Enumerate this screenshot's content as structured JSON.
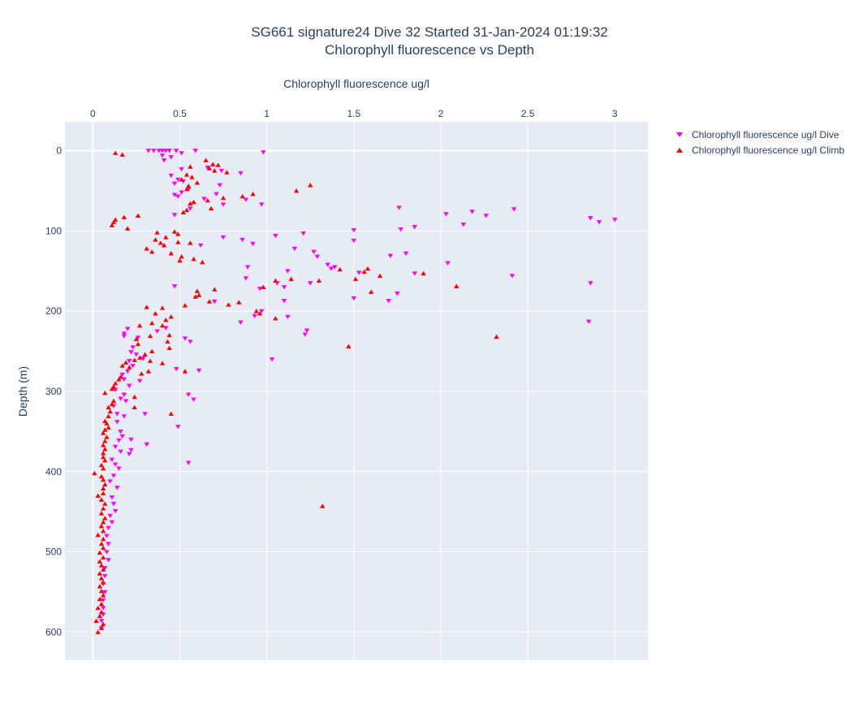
{
  "chart_data": {
    "type": "scatter",
    "title": "SG661 signature24 Dive 32 Started 31-Jan-2024 01:19:32",
    "subtitle": "Chlorophyll fluorescence vs Depth",
    "xlabel": "Chlorophyll fluorescence ug/l",
    "ylabel": "Depth (m)",
    "xlim": [
      -0.16,
      3.19
    ],
    "ylim": [
      635,
      -36
    ],
    "x_axis_position": "top",
    "y_reversed": true,
    "x_ticks": [
      0,
      0.5,
      1,
      1.5,
      2,
      2.5,
      3
    ],
    "y_ticks": [
      0,
      100,
      200,
      300,
      400,
      500,
      600
    ],
    "grid": true,
    "legend_position": "right",
    "series": [
      {
        "name": "Chlorophyll fluorescence ug/l Dive",
        "color": "#ff00ff",
        "marker": "triangle-down",
        "points": [
          [
            0.32,
            0
          ],
          [
            0.35,
            0
          ],
          [
            0.38,
            0
          ],
          [
            0.4,
            0
          ],
          [
            0.42,
            0
          ],
          [
            0.44,
            0
          ],
          [
            0.48,
            0
          ],
          [
            0.59,
            0
          ],
          [
            0.98,
            2
          ],
          [
            0.51,
            3
          ],
          [
            0.4,
            6
          ],
          [
            0.45,
            8
          ],
          [
            0.41,
            12
          ],
          [
            0.66,
            21
          ],
          [
            0.74,
            25
          ],
          [
            0.85,
            28
          ],
          [
            0.51,
            23
          ],
          [
            0.45,
            31
          ],
          [
            0.49,
            36
          ],
          [
            0.52,
            38
          ],
          [
            0.47,
            41
          ],
          [
            0.73,
            43
          ],
          [
            0.55,
            48
          ],
          [
            0.51,
            52
          ],
          [
            0.47,
            55
          ],
          [
            0.49,
            57
          ],
          [
            0.71,
            54
          ],
          [
            0.64,
            60
          ],
          [
            0.75,
            67
          ],
          [
            0.88,
            61
          ],
          [
            0.97,
            67
          ],
          [
            0.56,
            72
          ],
          [
            0.47,
            80
          ],
          [
            1.76,
            71
          ],
          [
            2.03,
            79
          ],
          [
            2.18,
            76
          ],
          [
            2.26,
            81
          ],
          [
            2.42,
            73
          ],
          [
            2.86,
            84
          ],
          [
            2.91,
            89
          ],
          [
            3.0,
            86
          ],
          [
            2.13,
            92
          ],
          [
            1.85,
            95
          ],
          [
            1.77,
            98
          ],
          [
            1.5,
            99
          ],
          [
            1.21,
            103
          ],
          [
            1.05,
            106
          ],
          [
            0.75,
            108
          ],
          [
            0.86,
            111
          ],
          [
            0.92,
            116
          ],
          [
            1.5,
            112
          ],
          [
            0.62,
            118
          ],
          [
            1.16,
            122
          ],
          [
            1.27,
            126
          ],
          [
            1.29,
            132
          ],
          [
            1.8,
            128
          ],
          [
            1.71,
            131
          ],
          [
            1.35,
            142
          ],
          [
            1.37,
            147
          ],
          [
            1.39,
            145
          ],
          [
            1.12,
            150
          ],
          [
            1.53,
            152
          ],
          [
            1.85,
            153
          ],
          [
            2.04,
            140
          ],
          [
            2.41,
            156
          ],
          [
            0.89,
            145
          ],
          [
            0.88,
            159
          ],
          [
            1.06,
            165
          ],
          [
            1.25,
            165
          ],
          [
            1.1,
            170
          ],
          [
            0.96,
            172
          ],
          [
            1.5,
            184
          ],
          [
            1.75,
            178
          ],
          [
            1.7,
            187
          ],
          [
            2.86,
            165
          ],
          [
            0.47,
            169
          ],
          [
            0.7,
            188
          ],
          [
            1.1,
            187
          ],
          [
            0.97,
            200
          ],
          [
            0.93,
            206
          ],
          [
            1.12,
            207
          ],
          [
            0.85,
            214
          ],
          [
            1.23,
            224
          ],
          [
            1.22,
            229
          ],
          [
            2.85,
            213
          ],
          [
            0.2,
            222
          ],
          [
            0.18,
            228
          ],
          [
            0.26,
            233
          ],
          [
            0.37,
            225
          ],
          [
            0.42,
            221
          ],
          [
            0.18,
            231
          ],
          [
            0.53,
            234
          ],
          [
            0.56,
            238
          ],
          [
            1.03,
            260
          ],
          [
            0.23,
            245
          ],
          [
            0.22,
            251
          ],
          [
            0.25,
            254
          ],
          [
            0.29,
            259
          ],
          [
            0.21,
            262
          ],
          [
            0.23,
            268
          ],
          [
            0.48,
            272
          ],
          [
            0.61,
            274
          ],
          [
            0.2,
            275
          ],
          [
            0.17,
            279
          ],
          [
            0.18,
            285
          ],
          [
            0.27,
            287
          ],
          [
            0.21,
            293
          ],
          [
            0.13,
            298
          ],
          [
            0.18,
            304
          ],
          [
            0.19,
            312
          ],
          [
            0.55,
            304
          ],
          [
            0.58,
            310
          ],
          [
            0.16,
            309
          ],
          [
            0.12,
            318
          ],
          [
            0.14,
            328
          ],
          [
            0.3,
            328
          ],
          [
            0.18,
            331
          ],
          [
            0.14,
            338
          ],
          [
            0.49,
            344
          ],
          [
            0.16,
            350
          ],
          [
            0.17,
            356
          ],
          [
            0.15,
            361
          ],
          [
            0.22,
            360
          ],
          [
            0.31,
            366
          ],
          [
            0.13,
            369
          ],
          [
            0.16,
            375
          ],
          [
            0.22,
            373
          ],
          [
            0.21,
            378
          ],
          [
            0.55,
            389
          ],
          [
            0.11,
            385
          ],
          [
            0.13,
            391
          ],
          [
            0.15,
            396
          ],
          [
            0.12,
            405
          ],
          [
            0.1,
            412
          ],
          [
            0.14,
            420
          ],
          [
            0.11,
            432
          ],
          [
            0.12,
            440
          ],
          [
            0.13,
            449
          ],
          [
            0.1,
            455
          ],
          [
            0.11,
            463
          ],
          [
            0.09,
            470
          ],
          [
            0.08,
            480
          ],
          [
            0.09,
            490
          ],
          [
            0.08,
            500
          ],
          [
            0.09,
            510
          ],
          [
            0.07,
            520
          ],
          [
            0.07,
            530
          ],
          [
            0.06,
            540
          ],
          [
            0.07,
            550
          ],
          [
            0.06,
            560
          ],
          [
            0.06,
            570
          ],
          [
            0.06,
            578
          ],
          [
            0.05,
            586
          ],
          [
            0.05,
            595
          ]
        ]
      },
      {
        "name": "Chlorophyll fluorescence ug/l Climb",
        "color": "#ff0000",
        "marker": "triangle-up",
        "points": [
          [
            0.13,
            3
          ],
          [
            0.17,
            5
          ],
          [
            0.65,
            12
          ],
          [
            0.69,
            17
          ],
          [
            0.72,
            18
          ],
          [
            0.56,
            20
          ],
          [
            0.67,
            22
          ],
          [
            0.7,
            25
          ],
          [
            0.77,
            27
          ],
          [
            0.54,
            30
          ],
          [
            0.57,
            33
          ],
          [
            0.51,
            36
          ],
          [
            0.6,
            40
          ],
          [
            0.55,
            44
          ],
          [
            1.25,
            43
          ],
          [
            0.54,
            48
          ],
          [
            1.17,
            50
          ],
          [
            0.92,
            54
          ],
          [
            0.86,
            57
          ],
          [
            0.75,
            59
          ],
          [
            0.66,
            62
          ],
          [
            0.58,
            64
          ],
          [
            0.56,
            66
          ],
          [
            0.68,
            72
          ],
          [
            0.54,
            74
          ],
          [
            0.52,
            77
          ],
          [
            0.26,
            81
          ],
          [
            0.18,
            83
          ],
          [
            0.13,
            86
          ],
          [
            0.12,
            89
          ],
          [
            0.11,
            93
          ],
          [
            0.2,
            97
          ],
          [
            0.37,
            102
          ],
          [
            0.47,
            101
          ],
          [
            0.49,
            104
          ],
          [
            0.42,
            108
          ],
          [
            0.36,
            111
          ],
          [
            0.39,
            115
          ],
          [
            0.41,
            118
          ],
          [
            0.49,
            114
          ],
          [
            0.56,
            115
          ],
          [
            0.31,
            122
          ],
          [
            0.34,
            126
          ],
          [
            0.45,
            128
          ],
          [
            0.51,
            132
          ],
          [
            0.58,
            135
          ],
          [
            0.5,
            137
          ],
          [
            0.63,
            139
          ],
          [
            1.42,
            148
          ],
          [
            1.58,
            147
          ],
          [
            1.56,
            151
          ],
          [
            1.65,
            156
          ],
          [
            1.51,
            160
          ],
          [
            1.3,
            162
          ],
          [
            1.9,
            153
          ],
          [
            1.05,
            162
          ],
          [
            1.14,
            160
          ],
          [
            0.98,
            170
          ],
          [
            0.7,
            173
          ],
          [
            0.6,
            175
          ],
          [
            0.61,
            180
          ],
          [
            0.59,
            182
          ],
          [
            1.6,
            176
          ],
          [
            2.09,
            169
          ],
          [
            0.53,
            193
          ],
          [
            0.67,
            188
          ],
          [
            0.78,
            192
          ],
          [
            0.84,
            189
          ],
          [
            0.94,
            200
          ],
          [
            0.96,
            203
          ],
          [
            0.4,
            196
          ],
          [
            0.31,
            195
          ],
          [
            0.36,
            203
          ],
          [
            0.45,
            207
          ],
          [
            0.42,
            211
          ],
          [
            0.34,
            215
          ],
          [
            0.27,
            218
          ],
          [
            0.4,
            218
          ],
          [
            1.05,
            209
          ],
          [
            0.44,
            230
          ],
          [
            0.33,
            231
          ],
          [
            0.25,
            235
          ],
          [
            0.43,
            238
          ],
          [
            0.26,
            241
          ],
          [
            0.44,
            246
          ],
          [
            0.34,
            250
          ],
          [
            0.3,
            254
          ],
          [
            0.27,
            258
          ],
          [
            0.24,
            261
          ],
          [
            0.19,
            264
          ],
          [
            0.33,
            262
          ],
          [
            0.4,
            265
          ],
          [
            0.17,
            268
          ],
          [
            0.21,
            270
          ],
          [
            0.53,
            275
          ],
          [
            0.32,
            275
          ],
          [
            0.28,
            278
          ],
          [
            0.16,
            282
          ],
          [
            0.15,
            285
          ],
          [
            0.13,
            290
          ],
          [
            0.12,
            294
          ],
          [
            0.11,
            297
          ],
          [
            0.07,
            302
          ],
          [
            0.24,
            307
          ],
          [
            0.12,
            312
          ],
          [
            0.11,
            316
          ],
          [
            0.09,
            320
          ],
          [
            0.24,
            320
          ],
          [
            0.1,
            325
          ],
          [
            0.45,
            328
          ],
          [
            0.09,
            331
          ],
          [
            0.07,
            337
          ],
          [
            0.08,
            340
          ],
          [
            0.09,
            345
          ],
          [
            0.07,
            348
          ],
          [
            0.06,
            352
          ],
          [
            0.08,
            357
          ],
          [
            0.07,
            362
          ],
          [
            0.06,
            367
          ],
          [
            0.07,
            372
          ],
          [
            0.06,
            377
          ],
          [
            0.06,
            382
          ],
          [
            0.07,
            386
          ],
          [
            0.05,
            392
          ],
          [
            0.06,
            396
          ],
          [
            0.01,
            402
          ],
          [
            0.05,
            406
          ],
          [
            0.06,
            410
          ],
          [
            0.07,
            416
          ],
          [
            0.06,
            421
          ],
          [
            0.06,
            427
          ],
          [
            0.03,
            430
          ],
          [
            0.05,
            435
          ],
          [
            0.07,
            440
          ],
          [
            0.06,
            446
          ],
          [
            1.32,
            443
          ],
          [
            1.47,
            244
          ],
          [
            2.32,
            232
          ],
          [
            0.05,
            452
          ],
          [
            0.07,
            458
          ],
          [
            0.06,
            463
          ],
          [
            0.05,
            468
          ],
          [
            0.06,
            474
          ],
          [
            0.03,
            479
          ],
          [
            0.06,
            484
          ],
          [
            0.05,
            490
          ],
          [
            0.06,
            495
          ],
          [
            0.04,
            501
          ],
          [
            0.06,
            507
          ],
          [
            0.04,
            512
          ],
          [
            0.05,
            517
          ],
          [
            0.06,
            522
          ],
          [
            0.04,
            527
          ],
          [
            0.05,
            533
          ],
          [
            0.06,
            538
          ],
          [
            0.04,
            543
          ],
          [
            0.05,
            549
          ],
          [
            0.06,
            554
          ],
          [
            0.04,
            559
          ],
          [
            0.05,
            565
          ],
          [
            0.03,
            570
          ],
          [
            0.05,
            575
          ],
          [
            0.04,
            580
          ],
          [
            0.02,
            586
          ],
          [
            0.06,
            590
          ],
          [
            0.05,
            595
          ],
          [
            0.03,
            600
          ]
        ]
      }
    ]
  }
}
